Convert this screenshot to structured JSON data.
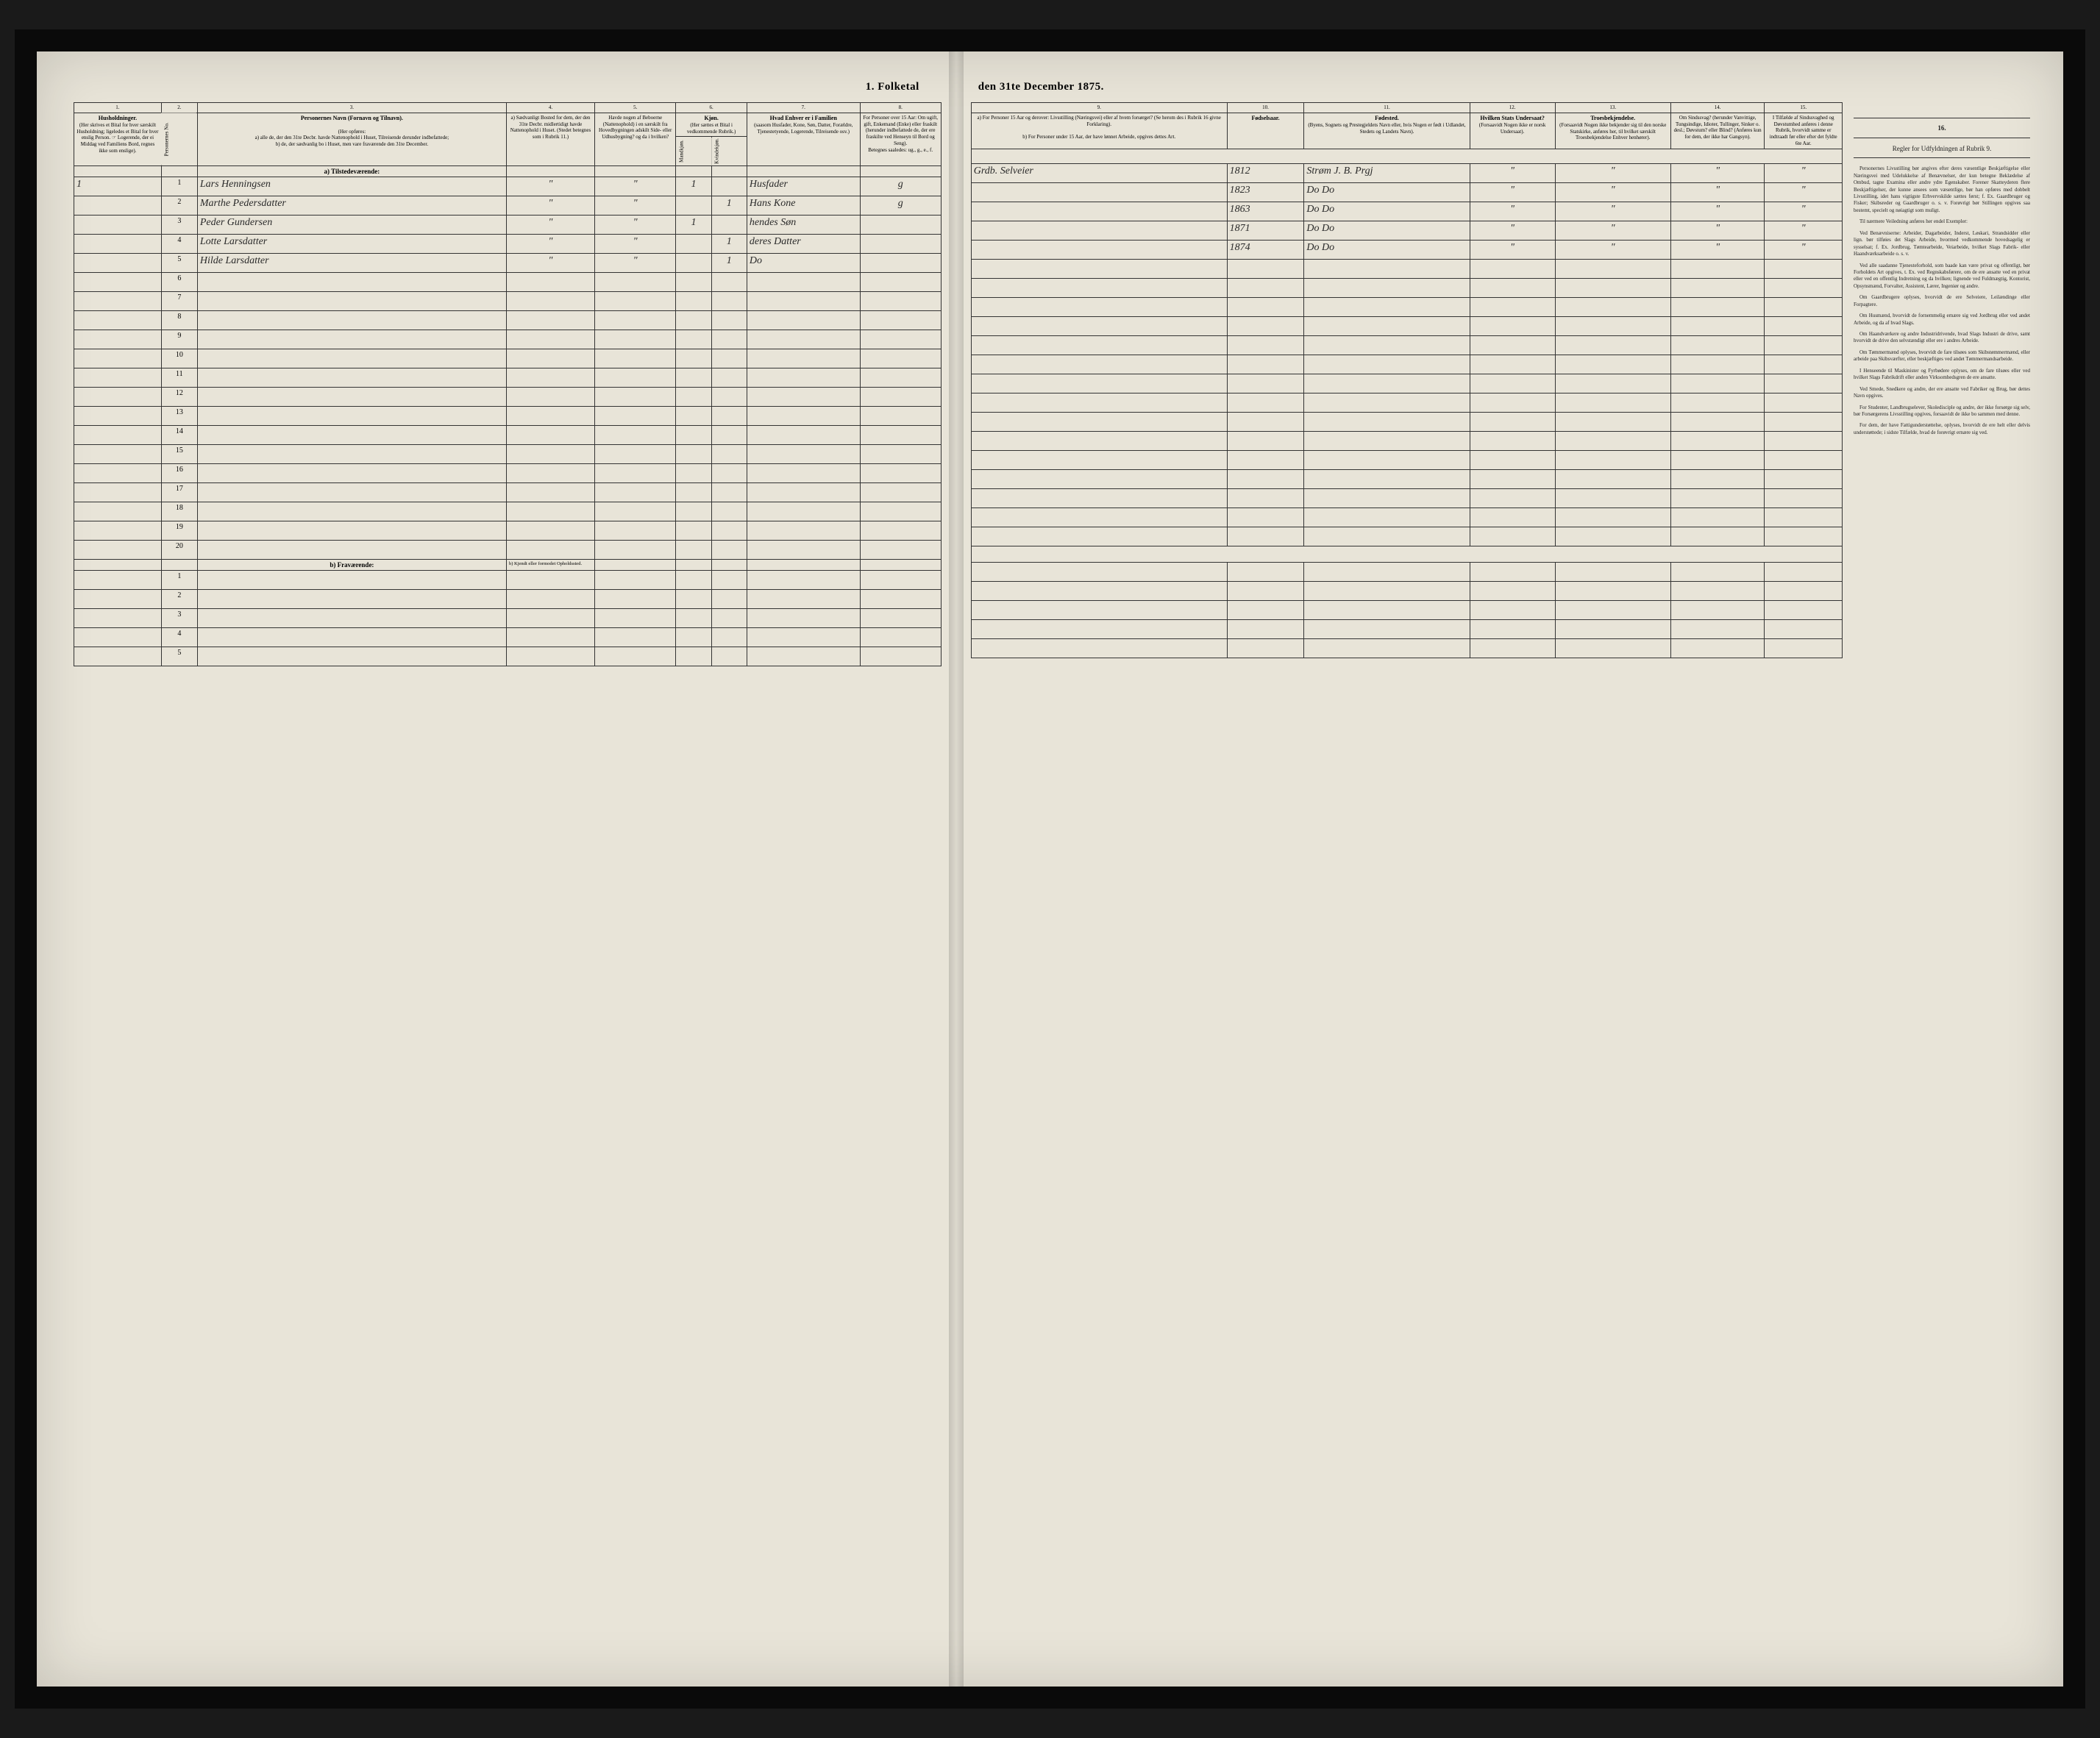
{
  "title_left": "1. Folketal",
  "title_right": "den 31te December 1875.",
  "columns": {
    "c1": "1.",
    "c2": "2.",
    "c3": "3.",
    "c4": "4.",
    "c5": "5.",
    "c6": "6.",
    "c7": "7.",
    "c8": "8.",
    "c9": "9.",
    "c10": "10.",
    "c11": "11.",
    "c12": "12.",
    "c13": "13.",
    "c14": "14.",
    "c15": "15.",
    "c16": "16."
  },
  "headers": {
    "h1": "Husholdninger.",
    "h1_sub": "(Her skrives et Bital for hver særskilt Husholdning; ligeledes et Bital for hver enslig Person. ☞ Logerende, der ei Middag ved Familiens Bord, regnes ikke som enslige).",
    "h2": "Personernes No.",
    "h3": "Personernes Navn (Fornavn og Tilnavn).",
    "h3_sub_intro": "(Her opføres:",
    "h3_sub_a": "a) alle de, der den 31te Decbr. havde Nattenophold i Huset, Tilreisende derunder indbefattede;",
    "h3_sub_b": "b) de, der sædvanlig bo i Huset, men vare fraværende den 31te December.",
    "h4": "a) Sædvanligt Bosted for dem, der den 31te Decbr. midlertidigt havde Nattenophold i Huset. (Stedet betegnes som i Rubrik 11.)",
    "h5": "Havde nogen af Beboerne (Nattenophold) i en særskilt fra Hovedbygningen adskilt Side- eller Udhusbygning? og da i hvilken?",
    "h6": "Kjøn.",
    "h6_sub": "(Her sættes et Bital i vedkommende Rubrik.)",
    "h6a": "Mandkjøn.",
    "h6b": "Kvindekjøn.",
    "h7": "Hvad Enhver er i Familien",
    "h7_sub": "(saasom Husfader, Kone, Søn, Datter, Forældre, Tjenestetyende, Logerende, Tilreisende osv.)",
    "h8": "For Personer over 15 Aar: Om ugift, gift, Enkemand (Enke) eller fraskilt (herunder indbefattede de, der ere fraskilte ved Henseyn til Bord og Seng).",
    "h8_sub": "Betegnes saaledes: ug., g., e., f.",
    "h9_a": "a) For Personer 15 Aar og derover: Livsstilling (Næringsvei) eller af hvem forsørget? (Se herom des i Rubrik 16 givne Forklaring).",
    "h9_b": "b) For Personer under 15 Aar, der have lønnet Arbeide, opgives dettes Art.",
    "h10": "Fødselsaar.",
    "h11": "Fødested.",
    "h11_sub": "(Byens, Sognets og Prestegjeldets Navn eller, hvis Nogen er født i Udlandet, Stedets og Landets Navn).",
    "h12": "Hvilken Stats Undersaat?",
    "h12_sub": "(Forsaavidt Nogen ikke er norsk Undersaat).",
    "h13": "Troesbekjendelse.",
    "h13_sub": "(Forsaavidt Nogen ikke bekjender sig til den norske Statskirke, anføres her, til hvilket særskilt Troesbekjendelse Enhver henhører).",
    "h14": "Om Sindssvag? (herunder Vanvittige, Tungsindige, Idioter, Tullinger, Sinker o. desl.; Døvstum? eller Blind? (Anføres kun for dem, der ikke har Gangsyn).",
    "h15": "I Tilfælde af Sindssvaghed og Døvstumhed anføres i denne Rubrik, hvorvidt samme er indtraadt før eller efter det fyldte 6te Aar.",
    "h16": "Regler for Udfyldningen af Rubrik 9."
  },
  "section_a": "a) Tilstedeværende:",
  "section_b": "b) Fraværende:",
  "section_b_col4": "b) Kjendt eller formodet Opholdssted.",
  "rows_a": [
    {
      "hh": "1",
      "n": "1",
      "name": "Lars Henningsen",
      "c4": "\"",
      "c5": "\"",
      "m": "1",
      "k": "",
      "fam": "Husfader",
      "civ": "g",
      "occ": "Grdb. Selveier",
      "yr": "1812",
      "birthpl": "Strøm J. B. Prgj",
      "c12": "\"",
      "c13": "\"",
      "c14": "\"",
      "c15": "\""
    },
    {
      "hh": "",
      "n": "2",
      "name": "Marthe Pedersdatter",
      "c4": "\"",
      "c5": "\"",
      "m": "",
      "k": "1",
      "fam": "Hans Kone",
      "civ": "g",
      "occ": "",
      "yr": "1823",
      "birthpl": "Do   Do",
      "c12": "\"",
      "c13": "\"",
      "c14": "\"",
      "c15": "\""
    },
    {
      "hh": "",
      "n": "3",
      "name": "Peder Gundersen",
      "c4": "\"",
      "c5": "\"",
      "m": "1",
      "k": "",
      "fam": "hendes Søn",
      "civ": "",
      "occ": "",
      "yr": "1863",
      "birthpl": "Do   Do",
      "c12": "\"",
      "c13": "\"",
      "c14": "\"",
      "c15": "\""
    },
    {
      "hh": "",
      "n": "4",
      "name": "Lotte Larsdatter",
      "c4": "\"",
      "c5": "\"",
      "m": "",
      "k": "1",
      "fam": "deres Datter",
      "civ": "",
      "occ": "",
      "yr": "1871",
      "birthpl": "Do   Do",
      "c12": "\"",
      "c13": "\"",
      "c14": "\"",
      "c15": "\""
    },
    {
      "hh": "",
      "n": "5",
      "name": "Hilde Larsdatter",
      "c4": "\"",
      "c5": "\"",
      "m": "",
      "k": "1",
      "fam": "Do",
      "civ": "",
      "occ": "",
      "yr": "1874",
      "birthpl": "Do   Do",
      "c12": "\"",
      "c13": "\"",
      "c14": "\"",
      "c15": "\""
    }
  ],
  "empty_a_start": 6,
  "empty_a_end": 20,
  "empty_b_count": 5,
  "instructions": {
    "title": "",
    "paras": [
      "Personernes Livsstilling bør angives efter deres væsentlige Beskjæftigelse eller Næringsvei med Udelukkelse af Benævnelser, der kun betegne Beklædelse af Ombud, tagne Examina eller andre ydre Egenskaber. Forener Skatteyderen flere Beskjæftigelser, der kunne ansees som væsentlige, bør han opføres med dobbelt Livsstilling, idet hans vigtigste Erhvervskilde sættes først; f. Ex. Gaardbruger og Fisker; Skibsreder og Gaardbruger o. s. v. Forøvrigt bør Stillingen opgives saa bestemt, specielt og nøiagtigt som muligt.",
      "Til nærmere Veiledning anføres her endel Exempler:",
      "Ved Benævniserne: Arbeider, Dagarbeider, Inderst, Løskari, Strandsidder eller lign. bør tilføies det Slags Arbeide, hvormed vedkommende hovedsagelig er sysselsat; f. Ex. Jordbrug, Tømtearbeide, Veiarbeide, hvilket Slags Fabrik- eller Haandværksarbeide o. s. v.",
      "Ved alle saadanne Tjenesteforhold, som baade kan være privat og offentligt, bør Forholdets Art opgives, t. Ex. ved Regnskabsførere, om de ere ansatte ved en privat eller ved en offentlig Indretning og da hvilken; lignende ved Fuldmægtig, Kontorist, Opsynsmænd, Forvalter, Assistent, Lærer, Ingeniør og andre.",
      "Om Gaardbrugere oplyses, hvorvidt de ere Selveiere, Leilændinge eller Forpagtere.",
      "Om Husmænd, hvorvidt de fornemmelig ernære sig ved Jordbrug eller ved andet Arbeide, og da af hvad Slags.",
      "Om Haandværkere og andre Industridrivende, hvad Slags Industri de drive, samt hvorvidt de drive den selvstændigt eller ere i andres Arbeide.",
      "Om Tømmermænd oplyses, hvorvidt de fare tilsøes som Skibstømmermænd, eller arbeide paa Skibsværfter, eller beskjæftiges ved andet Tømmermandsarbeide.",
      "I Henseende til Maskinister og Fyrbødere oplyses, om de fare tilsøes eller ved hvilket Slags Fabrikdrift eller anden Virksomhedsgren de ere ansatte.",
      "Ved Smede, Snedkere og andre, der ere ansatte ved Fabriker og Brug, bør dettes Navn opgives.",
      "For Studenter, Landbrugselever, Skoledisciple og andre, der ikke forsørge sig selv, bør Forsørgerens Livsstilling opgives, forsaavidt de ikke bo sammen med denne.",
      "For dem, der have Fattigunderstøttelse, oplyses, hvorvidt de ere helt eller delvis understøttede; i sidste Tilfælde, hvad de forøvrigt ernære sig ved."
    ]
  }
}
